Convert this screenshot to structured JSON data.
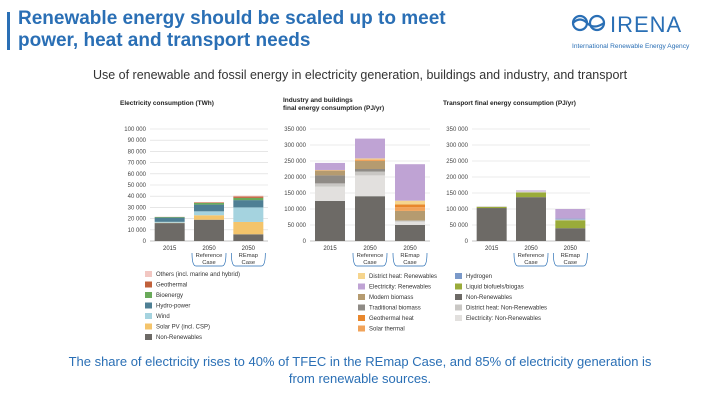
{
  "header": {
    "title_line1": "Renewable energy should be scaled up to meet",
    "title_line2": "power, heat and transport needs",
    "logo_text": "IRENA",
    "logo_subtext": "International Renewable Energy Agency",
    "subtitle": "Use of renewable and fossil energy in electricity generation, buildings and industry, and transport"
  },
  "footer": {
    "line1": "The share of electricity rises to 40% of TFEC in the REmap Case, and 85% of electricity generation is",
    "line2": "from renewable sources."
  },
  "colors": {
    "accent": "#2a6fb5",
    "others": "#f2c7c2",
    "geothermal": "#c0603a",
    "bioenergy": "#6aaa5a",
    "hydro": "#4e7f94",
    "wind": "#a5d3df",
    "solar_pv": "#f4c46b",
    "non_renewables": "#6d6a66",
    "district_heat_renewables": "#f6d58e",
    "electricity_renewables": "#bfa3d4",
    "modern_biomass": "#b59b70",
    "traditional_biomass": "#8f8b86",
    "geothermal_heat": "#e8872d",
    "solar_thermal": "#f1a35a",
    "hydrogen": "#7a99c9",
    "liquid_biofuels": "#9aab3a",
    "district_heat_non_renewables": "#c9c7c4",
    "electricity_non_renewables": "#e2e0de"
  },
  "chart_data": [
    {
      "type": "bar",
      "stacked": true,
      "title": "Electricity consumption (TWh)",
      "categories": [
        "2015",
        "2050",
        "2050"
      ],
      "category_sublabels": [
        "",
        "Reference Case",
        "REmap Case"
      ],
      "ylim": [
        0,
        100000
      ],
      "yticks": [
        0,
        10000,
        20000,
        30000,
        40000,
        50000,
        60000,
        70000,
        80000,
        90000,
        100000
      ],
      "ytick_labels": [
        "0",
        "10 000",
        "20 000",
        "30 000",
        "40 000",
        "50 000",
        "60 000",
        "70 000",
        "80 000",
        "90 000",
        "100 000"
      ],
      "grid": true,
      "legend_placement": "bottom",
      "series": [
        {
          "name": "Non-Renewables",
          "color_key": "non_renewables",
          "values": [
            16000,
            19000,
            6000
          ]
        },
        {
          "name": "Solar PV (incl. CSP)",
          "color_key": "solar_pv",
          "values": [
            300,
            4000,
            11000
          ]
        },
        {
          "name": "Wind",
          "color_key": "wind",
          "values": [
            800,
            3500,
            13000
          ]
        },
        {
          "name": "Hydro-power",
          "color_key": "hydro",
          "values": [
            3800,
            6000,
            6500
          ]
        },
        {
          "name": "Bioenergy",
          "color_key": "bioenergy",
          "values": [
            500,
            1500,
            2000
          ]
        },
        {
          "name": "Geothermal",
          "color_key": "geothermal",
          "values": [
            100,
            500,
            1200
          ]
        },
        {
          "name": "Others (incl. marine and hybrid)",
          "color_key": "others",
          "values": [
            50,
            200,
            800
          ]
        }
      ]
    },
    {
      "type": "bar",
      "stacked": true,
      "title": "Industry and buildings final energy consumption (PJ/yr)",
      "title_line1": "Industry and buildings",
      "title_line2": "final energy consumption (PJ/yr)",
      "categories": [
        "2015",
        "2050",
        "2050"
      ],
      "category_sublabels": [
        "",
        "Reference Case",
        "REmap Case"
      ],
      "ylim": [
        0,
        350000
      ],
      "yticks": [
        0,
        50000,
        100000,
        150000,
        200000,
        250000,
        300000,
        350000
      ],
      "ytick_labels": [
        "0",
        "50 000",
        "100 000",
        "150 000",
        "200 000",
        "250 000",
        "300 000",
        "350 000"
      ],
      "grid": true,
      "legend_placement": "bottom",
      "series": [
        {
          "name": "Non-Renewables",
          "color_key": "non_renewables",
          "values": [
            125000,
            140000,
            50000
          ]
        },
        {
          "name": "Electricity: Non-Renewables",
          "color_key": "electricity_non_renewables",
          "values": [
            45000,
            65000,
            10000
          ]
        },
        {
          "name": "District heat: Non-Renewables",
          "color_key": "district_heat_non_renewables",
          "values": [
            10000,
            12000,
            4000
          ]
        },
        {
          "name": "Traditional biomass",
          "color_key": "traditional_biomass",
          "values": [
            25000,
            8000,
            0
          ]
        },
        {
          "name": "Modern biomass",
          "color_key": "modern_biomass",
          "values": [
            15000,
            25000,
            30000
          ]
        },
        {
          "name": "Solar thermal",
          "color_key": "solar_thermal",
          "values": [
            1000,
            4000,
            12000
          ]
        },
        {
          "name": "Geothermal heat",
          "color_key": "geothermal_heat",
          "values": [
            500,
            1000,
            8000
          ]
        },
        {
          "name": "District heat: Renewables",
          "color_key": "district_heat_renewables",
          "values": [
            500,
            3000,
            12000
          ]
        },
        {
          "name": "Electricity: Renewables",
          "color_key": "electricity_renewables",
          "values": [
            22000,
            62000,
            114000
          ]
        }
      ]
    },
    {
      "type": "bar",
      "stacked": true,
      "title": "Transport final energy consumption (PJ/yr)",
      "categories": [
        "2015",
        "2050",
        "2050"
      ],
      "category_sublabels": [
        "",
        "Reference Case",
        "REmap Case"
      ],
      "ylim": [
        0,
        350000
      ],
      "yticks": [
        0,
        50000,
        100000,
        150000,
        200000,
        250000,
        300000,
        350000
      ],
      "ytick_labels": [
        "0",
        "50 000",
        "100 000",
        "150 000",
        "200 000",
        "250 000",
        "300 000",
        "350 000"
      ],
      "grid": true,
      "legend_placement": "bottom",
      "series": [
        {
          "name": "Non-Renewables",
          "color_key": "non_renewables",
          "values": [
            103000,
            137000,
            40000
          ]
        },
        {
          "name": "Liquid biofuels/biogas",
          "color_key": "liquid_biofuels",
          "values": [
            4000,
            15000,
            25000
          ]
        },
        {
          "name": "Electricity: Non-Renewables",
          "color_key": "electricity_non_renewables",
          "values": [
            1000,
            3000,
            2000
          ]
        },
        {
          "name": "Hydrogen",
          "color_key": "hydrogen",
          "values": [
            0,
            0,
            3000
          ]
        },
        {
          "name": "Electricity: Renewables",
          "color_key": "electricity_renewables",
          "values": [
            500,
            3000,
            30000
          ]
        }
      ]
    }
  ],
  "legends": [
    {
      "items": [
        {
          "label": "Others (incl. marine and hybrid)",
          "color_key": "others"
        },
        {
          "label": "Geothermal",
          "color_key": "geothermal"
        },
        {
          "label": "Bioenergy",
          "color_key": "bioenergy"
        },
        {
          "label": "Hydro-power",
          "color_key": "hydro"
        },
        {
          "label": "Wind",
          "color_key": "wind"
        },
        {
          "label": "Solar PV (incl. CSP)",
          "color_key": "solar_pv"
        },
        {
          "label": "Non-Renewables",
          "color_key": "non_renewables"
        }
      ]
    },
    {
      "items": [
        {
          "label": "District heat: Renewables",
          "color_key": "district_heat_renewables"
        },
        {
          "label": "Electricity: Renewables",
          "color_key": "electricity_renewables"
        },
        {
          "label": "Modern biomass",
          "color_key": "modern_biomass"
        },
        {
          "label": "Traditional biomass",
          "color_key": "traditional_biomass"
        },
        {
          "label": "Geothermal heat",
          "color_key": "geothermal_heat"
        },
        {
          "label": "Solar thermal",
          "color_key": "solar_thermal"
        }
      ]
    },
    {
      "items": [
        {
          "label": "Hydrogen",
          "color_key": "hydrogen"
        },
        {
          "label": "Liquid biofuels/biogas",
          "color_key": "liquid_biofuels"
        },
        {
          "label": "Non-Renewables",
          "color_key": "non_renewables"
        },
        {
          "label": "District heat: Non-Renewables",
          "color_key": "district_heat_non_renewables"
        },
        {
          "label": "Electricity: Non-Renewables",
          "color_key": "electricity_non_renewables"
        }
      ]
    }
  ]
}
